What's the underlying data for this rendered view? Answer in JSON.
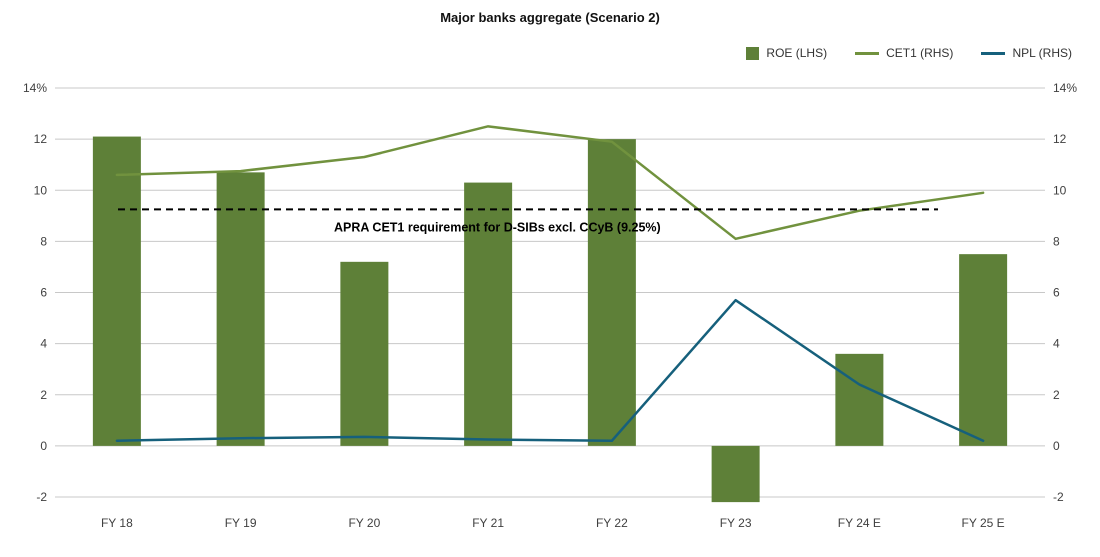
{
  "title": "Major banks aggregate (Scenario 2)",
  "legend": [
    {
      "label": "ROE (LHS)",
      "type": "bar",
      "color": "#5e8038"
    },
    {
      "label": "CET1 (RHS)",
      "type": "line",
      "color": "#71923e"
    },
    {
      "label": "NPL (RHS)",
      "type": "line",
      "color": "#16607c"
    }
  ],
  "chart_data": {
    "type": "bar+line",
    "title": "Major banks aggregate (Scenario 2)",
    "categories": [
      "FY 18",
      "FY 19",
      "FY 20",
      "FY 21",
      "FY 22",
      "FY 23",
      "FY 24 E",
      "FY 25 E"
    ],
    "series": [
      {
        "name": "ROE (LHS)",
        "type": "bar",
        "axis": "left",
        "color": "#5e8038",
        "values": [
          12.1,
          10.7,
          7.2,
          10.3,
          12.0,
          -2.2,
          3.6,
          7.5
        ]
      },
      {
        "name": "CET1 (RHS)",
        "type": "line",
        "axis": "right",
        "color": "#71923e",
        "values": [
          10.6,
          10.75,
          11.3,
          12.5,
          11.9,
          8.1,
          9.2,
          9.9
        ]
      },
      {
        "name": "NPL (RHS)",
        "type": "line",
        "axis": "right",
        "color": "#16607c",
        "values": [
          0.2,
          0.3,
          0.35,
          0.25,
          0.2,
          5.7,
          2.4,
          0.2
        ]
      }
    ],
    "y_left": {
      "ticks": [
        "14%",
        "12",
        "10",
        "8",
        "6",
        "4",
        "2",
        "0",
        "-2"
      ],
      "tick_values": [
        14,
        12,
        10,
        8,
        6,
        4,
        2,
        0,
        -2
      ],
      "min": -2,
      "max": 14
    },
    "y_right": {
      "ticks": [
        "14%",
        "12",
        "10",
        "8",
        "6",
        "4",
        "2",
        "0",
        "-2"
      ],
      "tick_values": [
        14,
        12,
        10,
        8,
        6,
        4,
        2,
        0,
        -2
      ],
      "min": -2,
      "max": 14
    },
    "threshold": {
      "value": 9.25,
      "label": "APRA CET1 requirement for D-SIBs excl. CCyB (9.25%)",
      "style": "dashed",
      "color": "#000000"
    },
    "grid": true,
    "legend_position": "top-right",
    "grid_color": "#c8c8c8"
  }
}
